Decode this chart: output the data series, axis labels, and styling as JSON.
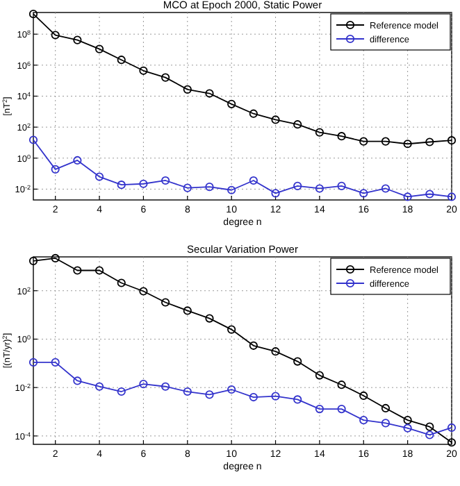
{
  "chart_data": [
    {
      "type": "line",
      "title": "MCO at Epoch 2000, Static Power",
      "xlabel": "degree n",
      "ylabel": "[nT$^{2}$]",
      "x": [
        1,
        2,
        3,
        4,
        5,
        6,
        7,
        8,
        9,
        10,
        11,
        12,
        13,
        14,
        15,
        16,
        17,
        18,
        19,
        20
      ],
      "log": "y",
      "grid": true,
      "legend": "top right",
      "marker": "circle",
      "line_style": "solid",
      "xlim": [
        1,
        20
      ],
      "xticks": [
        2,
        4,
        6,
        8,
        10,
        12,
        14,
        16,
        18,
        20
      ],
      "ylim": [
        0.002,
        2500000000
      ],
      "yticks": [
        {
          "value": 0.01,
          "label": "10$^{-2}$"
        },
        {
          "value": 1,
          "label": "10$^{0}$"
        },
        {
          "value": 100,
          "label": "10$^{2}$"
        },
        {
          "value": 10000,
          "label": "10$^{4}$"
        },
        {
          "value": 1000000,
          "label": "10$^{6}$"
        },
        {
          "value": 100000000,
          "label": "10$^{8}$"
        }
      ],
      "series": [
        {
          "name": "Reference model",
          "color": "#000000",
          "values": [
            2000000000,
            87000000,
            42000000,
            11000000,
            2200000,
            440000,
            160000,
            27000,
            15000,
            3100,
            740,
            300,
            150,
            46,
            26,
            12,
            12,
            8.3,
            11,
            14
          ]
        },
        {
          "name": "difference",
          "color": "#3333cc",
          "values": [
            15,
            0.19,
            0.72,
            0.063,
            0.019,
            0.022,
            0.036,
            0.012,
            0.014,
            0.0087,
            0.036,
            0.0054,
            0.016,
            0.011,
            0.016,
            0.0054,
            0.011,
            0.0032,
            0.0048,
            0.0032
          ]
        }
      ]
    },
    {
      "type": "line",
      "title": "Secular Variation Power",
      "xlabel": "degree n",
      "ylabel": "[(nT/yr)$^{2}$]",
      "x": [
        1,
        2,
        3,
        4,
        5,
        6,
        7,
        8,
        9,
        10,
        11,
        12,
        13,
        14,
        15,
        16,
        17,
        18,
        19,
        20
      ],
      "log": "y",
      "grid": true,
      "legend": "top right",
      "marker": "circle",
      "line_style": "solid",
      "xlim": [
        1,
        20
      ],
      "xticks": [
        2,
        4,
        6,
        8,
        10,
        12,
        14,
        16,
        18,
        20
      ],
      "ylim": [
        4.5e-05,
        2500
      ],
      "yticks": [
        {
          "value": 0.0001,
          "label": "10$^{-4}$"
        },
        {
          "value": 0.01,
          "label": "10$^{-2}$"
        },
        {
          "value": 1,
          "label": "10$^{0}$"
        },
        {
          "value": 100,
          "label": "10$^{2}$"
        }
      ],
      "series": [
        {
          "name": "Reference model",
          "color": "#000000",
          "values": [
            1700,
            2200,
            690,
            690,
            210,
            95,
            33,
            15,
            7.2,
            2.5,
            0.54,
            0.31,
            0.12,
            0.032,
            0.013,
            0.0046,
            0.0014,
            0.00045,
            0.00024,
            5.4e-05
          ]
        },
        {
          "name": "difference",
          "color": "#3333cc",
          "values": [
            0.11,
            0.11,
            0.019,
            0.011,
            0.0068,
            0.014,
            0.011,
            0.0068,
            0.0051,
            0.0083,
            0.004,
            0.0044,
            0.0032,
            0.0013,
            0.0013,
            0.00045,
            0.00034,
            0.00021,
            0.00011,
            0.00022
          ]
        }
      ]
    }
  ]
}
